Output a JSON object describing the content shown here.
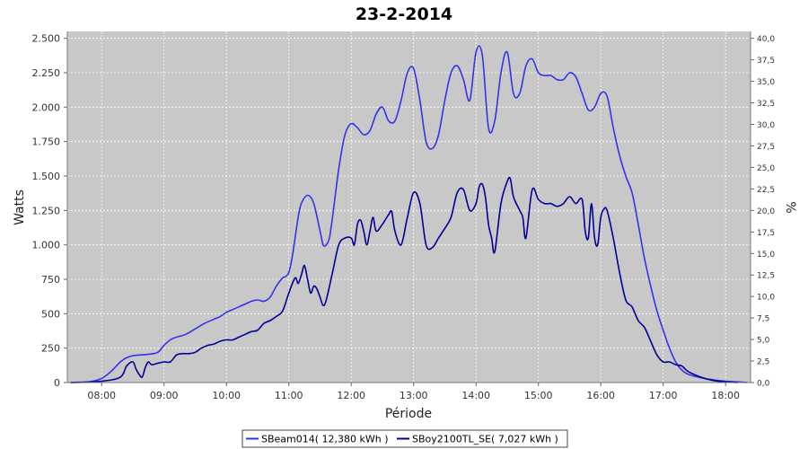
{
  "chart_data": {
    "type": "line",
    "title": "23-2-2014",
    "xlabel": "Période",
    "ylabel": "Watts",
    "y2label": "%",
    "xlim": [
      7.45,
      18.4
    ],
    "ylim": [
      0,
      2550
    ],
    "y2lim": [
      0,
      40.8
    ],
    "x_ticks": [
      8,
      9,
      10,
      11,
      12,
      13,
      14,
      15,
      16,
      17,
      18
    ],
    "x_tick_labels": [
      "08:00",
      "09:00",
      "10:00",
      "11:00",
      "12:00",
      "13:00",
      "14:00",
      "15:00",
      "16:00",
      "17:00",
      "18:00"
    ],
    "y_ticks": [
      0,
      250,
      500,
      750,
      1000,
      1250,
      1500,
      1750,
      2000,
      2250,
      2500
    ],
    "y_tick_labels": [
      "0",
      "250",
      "500",
      "750",
      "1.000",
      "1.250",
      "1.500",
      "1.750",
      "2.000",
      "2.250",
      "2.500"
    ],
    "y2_ticks": [
      0,
      2.5,
      5,
      7.5,
      10,
      12.5,
      15,
      17.5,
      20,
      22.5,
      25,
      27.5,
      30,
      32.5,
      35,
      37.5,
      40
    ],
    "y2_tick_labels": [
      "0,0",
      "2,5",
      "5,0",
      "7,5",
      "10,0",
      "12,5",
      "15,0",
      "17,5",
      "20,0",
      "22,5",
      "25,0",
      "27,5",
      "30,0",
      "32,5",
      "35,0",
      "37,5",
      "40,0"
    ],
    "grid": true,
    "legend_position": "bottom",
    "colors": {
      "plot_background": "#c8c8c8",
      "grid": "#ffffff",
      "series_1": "#3333ee",
      "series_2": "#000099"
    },
    "series": [
      {
        "name": "SBeam014( 12,380 kWh )",
        "x": [
          7.5,
          7.8,
          8.0,
          8.15,
          8.3,
          8.4,
          8.5,
          8.6,
          8.75,
          8.9,
          9.0,
          9.1,
          9.2,
          9.35,
          9.5,
          9.65,
          9.8,
          9.9,
          10.0,
          10.1,
          10.2,
          10.3,
          10.4,
          10.5,
          10.6,
          10.7,
          10.8,
          10.9,
          10.95,
          11.0,
          11.05,
          11.1,
          11.15,
          11.2,
          11.3,
          11.4,
          11.5,
          11.55,
          11.6,
          11.65,
          11.7,
          11.8,
          11.9,
          12.0,
          12.1,
          12.2,
          12.3,
          12.4,
          12.5,
          12.6,
          12.7,
          12.8,
          12.9,
          13.0,
          13.1,
          13.2,
          13.3,
          13.4,
          13.5,
          13.6,
          13.7,
          13.8,
          13.9,
          14.0,
          14.1,
          14.2,
          14.3,
          14.4,
          14.5,
          14.6,
          14.7,
          14.8,
          14.9,
          15.0,
          15.1,
          15.2,
          15.3,
          15.4,
          15.5,
          15.6,
          15.7,
          15.8,
          15.9,
          16.0,
          16.1,
          16.2,
          16.3,
          16.4,
          16.5,
          16.6,
          16.7,
          16.8,
          16.9,
          17.0,
          17.1,
          17.2,
          17.3,
          17.4,
          17.6,
          17.8,
          18.0,
          18.2,
          18.35
        ],
        "values": [
          0,
          5,
          30,
          80,
          150,
          180,
          195,
          200,
          205,
          220,
          270,
          310,
          330,
          350,
          390,
          430,
          460,
          480,
          510,
          530,
          550,
          570,
          590,
          600,
          590,
          620,
          700,
          760,
          770,
          800,
          900,
          1050,
          1200,
          1300,
          1360,
          1300,
          1100,
          1000,
          1000,
          1050,
          1200,
          1550,
          1800,
          1880,
          1850,
          1800,
          1830,
          1950,
          2000,
          1900,
          1900,
          2050,
          2250,
          2280,
          2050,
          1750,
          1700,
          1800,
          2050,
          2250,
          2300,
          2200,
          2050,
          2400,
          2380,
          1850,
          1900,
          2250,
          2400,
          2100,
          2100,
          2300,
          2350,
          2250,
          2230,
          2230,
          2200,
          2200,
          2250,
          2220,
          2100,
          1980,
          2000,
          2100,
          2080,
          1850,
          1650,
          1500,
          1380,
          1150,
          900,
          700,
          520,
          380,
          250,
          150,
          90,
          60,
          35,
          20,
          10,
          5,
          0
        ]
      },
      {
        "name": "SBoy2100TL_SE( 7,027 kWh )",
        "x": [
          7.5,
          8.0,
          8.3,
          8.4,
          8.5,
          8.55,
          8.6,
          8.65,
          8.7,
          8.75,
          8.8,
          8.9,
          9.0,
          9.1,
          9.2,
          9.3,
          9.4,
          9.5,
          9.6,
          9.7,
          9.8,
          9.9,
          10.0,
          10.1,
          10.2,
          10.3,
          10.4,
          10.5,
          10.6,
          10.7,
          10.8,
          10.9,
          11.0,
          11.1,
          11.15,
          11.2,
          11.25,
          11.3,
          11.35,
          11.4,
          11.45,
          11.5,
          11.55,
          11.6,
          11.7,
          11.8,
          11.9,
          12.0,
          12.05,
          12.1,
          12.15,
          12.2,
          12.25,
          12.3,
          12.35,
          12.4,
          12.5,
          12.6,
          12.65,
          12.7,
          12.8,
          12.9,
          13.0,
          13.1,
          13.2,
          13.3,
          13.4,
          13.5,
          13.6,
          13.7,
          13.8,
          13.9,
          14.0,
          14.05,
          14.1,
          14.15,
          14.2,
          14.25,
          14.3,
          14.4,
          14.5,
          14.55,
          14.6,
          14.7,
          14.75,
          14.8,
          14.9,
          15.0,
          15.1,
          15.2,
          15.3,
          15.4,
          15.5,
          15.6,
          15.7,
          15.75,
          15.8,
          15.85,
          15.9,
          15.95,
          16.0,
          16.05,
          16.1,
          16.2,
          16.3,
          16.4,
          16.5,
          16.6,
          16.7,
          16.8,
          16.9,
          17.0,
          17.1,
          17.2,
          17.3,
          17.4,
          17.6,
          17.8,
          18.0,
          18.2
        ],
        "values": [
          0,
          10,
          40,
          120,
          150,
          100,
          60,
          40,
          110,
          150,
          130,
          140,
          150,
          150,
          200,
          210,
          210,
          220,
          250,
          270,
          280,
          300,
          310,
          310,
          330,
          350,
          370,
          380,
          430,
          450,
          480,
          520,
          650,
          760,
          720,
          780,
          850,
          750,
          650,
          700,
          680,
          620,
          560,
          600,
          800,
          1000,
          1050,
          1050,
          1000,
          1150,
          1180,
          1100,
          1000,
          1100,
          1200,
          1100,
          1150,
          1220,
          1240,
          1100,
          1000,
          1200,
          1380,
          1300,
          1000,
          980,
          1050,
          1120,
          1200,
          1380,
          1400,
          1250,
          1300,
          1420,
          1440,
          1350,
          1150,
          1050,
          950,
          1300,
          1460,
          1480,
          1350,
          1250,
          1200,
          1050,
          1400,
          1330,
          1300,
          1300,
          1280,
          1300,
          1350,
          1300,
          1330,
          1100,
          1050,
          1300,
          1050,
          1000,
          1200,
          1260,
          1250,
          1050,
          800,
          600,
          550,
          450,
          400,
          300,
          200,
          150,
          150,
          130,
          120,
          80,
          40,
          15,
          5,
          0
        ]
      }
    ]
  }
}
